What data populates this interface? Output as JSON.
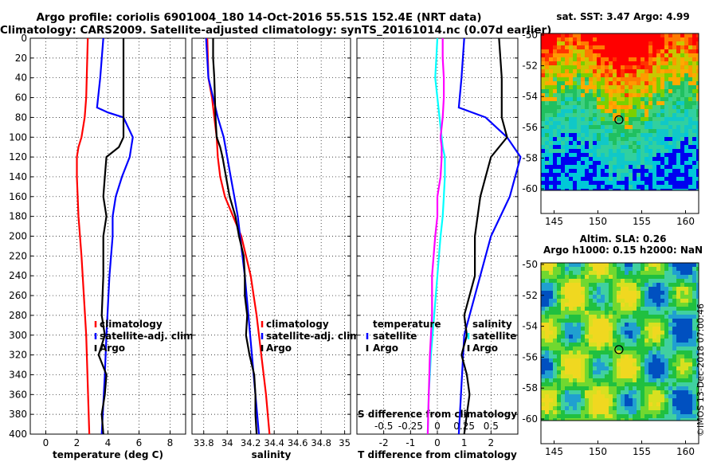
{
  "header": {
    "line1": "Argo profile: coriolis 6901004_180 14-Oct-2016 55.51S 152.4E (NRT data)",
    "line2": "Climatology: CARS2009. Satellite-adjusted climatology: synTS_20161014.nc (0.07d earlier)"
  },
  "credit": "©IMOS 13-Dec-2018 07:00:46",
  "colors": {
    "climatology": "#ff0000",
    "satellite": "#0000ff",
    "argo": "#000000",
    "s_difference": "#ff00ff",
    "t_difference": "#00ffff"
  },
  "chart_data": [
    {
      "type": "line",
      "name": "temperature-panel",
      "xlabel": "temperature (deg C)",
      "ylabel": "",
      "xlim": [
        -1,
        9
      ],
      "ylim": [
        400,
        0
      ],
      "xticks": [
        "0",
        "2",
        "4",
        "6",
        "8"
      ],
      "yticks": [
        "0",
        "20",
        "40",
        "60",
        "80",
        "100",
        "120",
        "140",
        "160",
        "180",
        "200",
        "220",
        "240",
        "260",
        "280",
        "300",
        "320",
        "340",
        "360",
        "380",
        "400"
      ],
      "legend": [
        "climatology",
        "satellite-adj. clim.",
        "Argo"
      ],
      "legend_position": "lower-right",
      "series": [
        {
          "name": "climatology",
          "depth": [
            0,
            60,
            80,
            100,
            110,
            120,
            140,
            180,
            220,
            300,
            400
          ],
          "values": [
            2.7,
            2.6,
            2.5,
            2.3,
            2.1,
            2.0,
            2.0,
            2.1,
            2.3,
            2.6,
            2.8
          ]
        },
        {
          "name": "satellite-adj. clim.",
          "depth": [
            0,
            40,
            70,
            75,
            80,
            100,
            120,
            140,
            160,
            180,
            200,
            240,
            300,
            340,
            400
          ],
          "values": [
            3.7,
            3.5,
            3.3,
            4.0,
            5.0,
            5.6,
            5.4,
            4.9,
            4.5,
            4.3,
            4.3,
            4.1,
            3.9,
            3.8,
            3.6
          ]
        },
        {
          "name": "Argo",
          "depth": [
            0,
            20,
            60,
            80,
            100,
            110,
            120,
            140,
            160,
            180,
            200,
            240,
            280,
            300,
            320,
            340,
            360,
            380,
            400
          ],
          "values": [
            5.0,
            5.0,
            5.0,
            5.0,
            5.0,
            4.7,
            3.9,
            3.8,
            3.7,
            3.9,
            3.7,
            3.7,
            3.6,
            3.8,
            3.4,
            3.9,
            3.8,
            3.6,
            3.7
          ]
        }
      ]
    },
    {
      "type": "line",
      "name": "salinity-panel",
      "xlabel": "salinity",
      "ylabel": "",
      "xlim": [
        33.7,
        35.05
      ],
      "ylim": [
        400,
        0
      ],
      "xticks": [
        "33.8",
        "34",
        "34.2",
        "34.4",
        "34.6",
        "34.8",
        "35"
      ],
      "legend": [
        "climatology",
        "satellite-adj. clim.",
        "Argo"
      ],
      "legend_position": "lower-right",
      "series": [
        {
          "name": "climatology",
          "depth": [
            0,
            40,
            60,
            80,
            100,
            120,
            140,
            160,
            180,
            200,
            240,
            280,
            320,
            360,
            400
          ],
          "values": [
            33.83,
            33.84,
            33.87,
            33.89,
            33.91,
            33.92,
            33.94,
            33.98,
            34.05,
            34.12,
            34.2,
            34.25,
            34.29,
            34.33,
            34.36
          ]
        },
        {
          "name": "satellite-adj. clim.",
          "depth": [
            0,
            40,
            60,
            80,
            100,
            120,
            140,
            160,
            180,
            200,
            240,
            280,
            320,
            360,
            400
          ],
          "values": [
            33.82,
            33.84,
            33.88,
            33.92,
            33.97,
            34.0,
            34.03,
            34.06,
            34.09,
            34.11,
            34.15,
            34.18,
            34.21,
            34.24,
            34.27
          ]
        },
        {
          "name": "Argo",
          "depth": [
            0,
            20,
            40,
            80,
            100,
            110,
            120,
            140,
            160,
            180,
            200,
            220,
            240,
            260,
            280,
            300,
            320,
            340,
            360,
            380,
            400
          ],
          "values": [
            33.88,
            33.88,
            33.89,
            33.9,
            33.91,
            33.94,
            33.96,
            33.99,
            34.02,
            34.07,
            34.1,
            34.14,
            34.15,
            34.15,
            34.17,
            34.16,
            34.19,
            34.23,
            34.24,
            34.24,
            34.25
          ]
        }
      ]
    },
    {
      "type": "line",
      "name": "difference-panel",
      "xlabel": "T difference from climatology",
      "top_xlabel": "S difference from climatology",
      "ylabel": "",
      "xlim": [
        -3,
        3
      ],
      "top_xlim": [
        -0.75,
        0.75
      ],
      "ylim": [
        400,
        0
      ],
      "xticks": [
        "-2",
        "-1",
        "0",
        "1",
        "2"
      ],
      "top_xticks": [
        "-0.5",
        "-0.25",
        "0",
        "0.25",
        "0.5"
      ],
      "legend_temperature": [
        "temperature",
        "satellite",
        "Argo"
      ],
      "legend_salinity": [
        "salinity",
        "satellite",
        "Argo"
      ],
      "legend_position": "lower-center",
      "series": [
        {
          "name": "T satellite",
          "axis": "T",
          "depth": [
            0,
            40,
            70,
            80,
            100,
            120,
            160,
            200,
            260,
            300,
            350,
            400
          ],
          "values": [
            1.0,
            0.9,
            0.8,
            1.8,
            2.6,
            3.1,
            2.7,
            2.0,
            1.4,
            1.0,
            0.9,
            0.8
          ]
        },
        {
          "name": "T Argo",
          "axis": "T",
          "depth": [
            0,
            40,
            60,
            80,
            100,
            120,
            140,
            160,
            200,
            240,
            280,
            300,
            320,
            340,
            360,
            380,
            400
          ],
          "values": [
            2.3,
            2.4,
            2.4,
            2.4,
            2.6,
            2.0,
            1.8,
            1.6,
            1.4,
            1.4,
            1.0,
            1.1,
            0.9,
            1.1,
            1.2,
            1.1,
            1.0
          ]
        },
        {
          "name": "S satellite",
          "axis": "S",
          "depth": [
            0,
            20,
            40,
            60,
            80,
            100,
            110,
            120,
            140,
            160,
            180,
            200,
            240,
            280,
            320,
            360,
            400
          ],
          "values": [
            0.0,
            -0.01,
            -0.02,
            0.0,
            0.02,
            0.04,
            0.05,
            0.07,
            0.07,
            0.06,
            0.05,
            0.03,
            0.0,
            -0.03,
            -0.06,
            -0.08,
            -0.09
          ]
        },
        {
          "name": "S Argo",
          "axis": "S",
          "depth": [
            0,
            20,
            40,
            60,
            80,
            100,
            110,
            120,
            140,
            160,
            180,
            200,
            240,
            280,
            320,
            360,
            400
          ],
          "values": [
            0.05,
            0.05,
            0.06,
            0.06,
            0.05,
            0.03,
            0.04,
            0.04,
            0.03,
            0.0,
            0.0,
            -0.02,
            -0.05,
            -0.05,
            -0.07,
            -0.08,
            -0.09
          ]
        }
      ]
    },
    {
      "type": "heatmap",
      "name": "sst-map",
      "title": "sat. SST: 3.47 Argo: 4.99",
      "xlabel": "",
      "xticks": [
        "145",
        "150",
        "155",
        "160"
      ],
      "yticks": [
        "-50",
        "-52",
        "-54",
        "-56",
        "-58",
        "-60"
      ],
      "xlim": [
        143.5,
        161.5
      ],
      "ylim": [
        -60.1,
        -49.9
      ],
      "marker": {
        "lon": 152.4,
        "lat": -55.51
      }
    },
    {
      "type": "heatmap",
      "name": "sla-map",
      "title": "Altim. SLA: 0.26",
      "subtitle": "Argo h1000: 0.15 h2000: NaN",
      "xlabel": "",
      "xticks": [
        "145",
        "150",
        "155",
        "160"
      ],
      "yticks": [
        "-50",
        "-52",
        "-54",
        "-56",
        "-58",
        "-60"
      ],
      "xlim": [
        143.5,
        161.5
      ],
      "ylim": [
        -60.1,
        -49.9
      ],
      "marker": {
        "lon": 152.4,
        "lat": -55.51
      }
    }
  ]
}
